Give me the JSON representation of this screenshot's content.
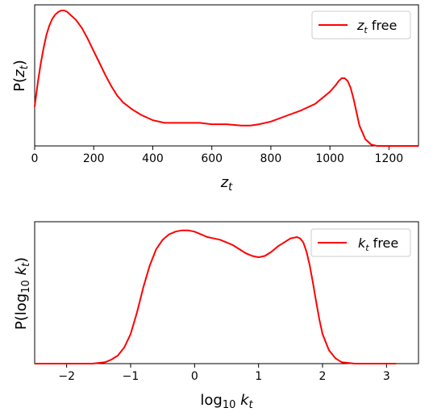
{
  "chart_data": [
    {
      "type": "line",
      "xlabel": "z_t",
      "ylabel": "P(z_t)",
      "xlim": [
        0,
        1300
      ],
      "ylim": [
        0,
        1
      ],
      "xticks": [
        0,
        200,
        400,
        600,
        800,
        1000,
        1200
      ],
      "xtick_labels": [
        "0",
        "200",
        "400",
        "600",
        "800",
        "1000",
        "1200"
      ],
      "yticks_shown": false,
      "legend_position": "top-right",
      "series": [
        {
          "name": "z_t free",
          "color": "#ff0000",
          "x": [
            0,
            10,
            20,
            30,
            40,
            50,
            60,
            70,
            80,
            90,
            100,
            110,
            120,
            140,
            160,
            180,
            200,
            220,
            240,
            260,
            280,
            300,
            330,
            360,
            400,
            440,
            480,
            520,
            560,
            600,
            650,
            700,
            730,
            760,
            800,
            850,
            900,
            950,
            1000,
            1020,
            1030,
            1040,
            1050,
            1060,
            1070,
            1080,
            1090,
            1100,
            1120,
            1140,
            1160,
            1180,
            1200,
            1250,
            1300
          ],
          "y": [
            0.29,
            0.46,
            0.6,
            0.72,
            0.82,
            0.89,
            0.94,
            0.97,
            0.99,
            1.0,
            1.0,
            0.99,
            0.97,
            0.93,
            0.87,
            0.79,
            0.7,
            0.61,
            0.52,
            0.44,
            0.37,
            0.32,
            0.27,
            0.23,
            0.19,
            0.17,
            0.17,
            0.17,
            0.17,
            0.16,
            0.16,
            0.15,
            0.15,
            0.16,
            0.18,
            0.22,
            0.26,
            0.31,
            0.4,
            0.45,
            0.48,
            0.5,
            0.5,
            0.48,
            0.43,
            0.35,
            0.25,
            0.15,
            0.05,
            0.01,
            0.0,
            0.0,
            0.0,
            0.0,
            0.0
          ]
        }
      ]
    },
    {
      "type": "line",
      "xlabel": "log10 k_t",
      "ylabel": "P(log10 k_t)",
      "xlim": [
        -2.5,
        3.5
      ],
      "ylim": [
        0,
        1
      ],
      "xticks": [
        -2,
        -1,
        0,
        1,
        2,
        3
      ],
      "xtick_labels": [
        "−2",
        "−1",
        "0",
        "1",
        "2",
        "3"
      ],
      "yticks_shown": false,
      "legend_position": "top-right",
      "series": [
        {
          "name": "k_t free",
          "color": "#ff0000",
          "x": [
            -2.5,
            -2.0,
            -1.6,
            -1.4,
            -1.3,
            -1.2,
            -1.1,
            -1.0,
            -0.9,
            -0.8,
            -0.7,
            -0.6,
            -0.5,
            -0.4,
            -0.3,
            -0.2,
            -0.1,
            0.0,
            0.1,
            0.2,
            0.3,
            0.4,
            0.5,
            0.6,
            0.7,
            0.8,
            0.9,
            1.0,
            1.1,
            1.2,
            1.3,
            1.4,
            1.5,
            1.6,
            1.65,
            1.7,
            1.75,
            1.8,
            1.85,
            1.9,
            1.95,
            2.0,
            2.1,
            2.2,
            2.3,
            2.5,
            3.0,
            3.15
          ],
          "y": [
            0.0,
            0.0,
            0.0,
            0.01,
            0.03,
            0.06,
            0.12,
            0.22,
            0.38,
            0.57,
            0.73,
            0.85,
            0.92,
            0.96,
            0.98,
            0.99,
            0.99,
            0.98,
            0.96,
            0.94,
            0.93,
            0.92,
            0.9,
            0.88,
            0.85,
            0.82,
            0.8,
            0.79,
            0.8,
            0.83,
            0.87,
            0.9,
            0.93,
            0.94,
            0.93,
            0.9,
            0.83,
            0.73,
            0.6,
            0.46,
            0.33,
            0.22,
            0.1,
            0.04,
            0.01,
            0.0,
            0.0,
            0.0
          ]
        }
      ]
    }
  ]
}
